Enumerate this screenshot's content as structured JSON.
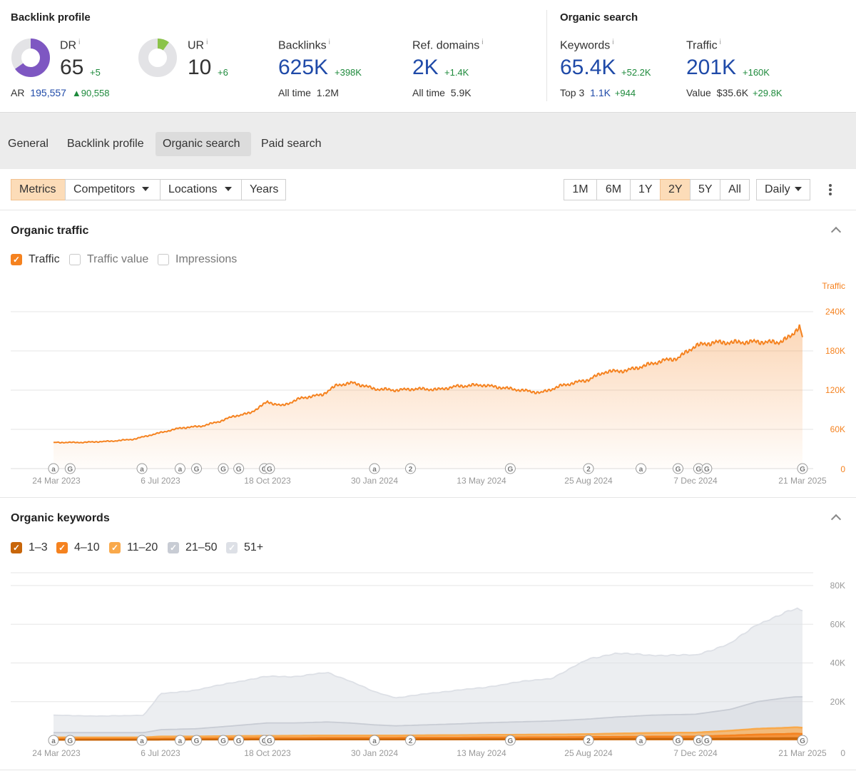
{
  "backlink_profile": {
    "title": "Backlink profile",
    "dr": {
      "label": "DR",
      "info": "i",
      "value": "65",
      "delta": "+5",
      "ring_fill": 0.65
    },
    "ar": {
      "label": "AR",
      "value": "195,557",
      "delta": "90,558"
    },
    "ur": {
      "label": "UR",
      "info": "i",
      "value": "10",
      "delta": "+6",
      "ring_fill": 0.1
    },
    "backlinks": {
      "label": "Backlinks",
      "info": "i",
      "value": "625K",
      "delta": "+398K",
      "sub_label": "All time",
      "sub_value": "1.2M"
    },
    "ref_domains": {
      "label": "Ref. domains",
      "info": "i",
      "value": "2K",
      "delta": "+1.4K",
      "sub_label": "All time",
      "sub_value": "5.9K"
    }
  },
  "organic_search": {
    "title": "Organic search",
    "keywords": {
      "label": "Keywords",
      "info": "i",
      "value": "65.4K",
      "delta": "+52.2K",
      "sub_label": "Top 3",
      "sub_value": "1.1K",
      "sub_delta": "+944"
    },
    "traffic": {
      "label": "Traffic",
      "info": "i",
      "value": "201K",
      "delta": "+160K",
      "sub_label": "Value",
      "sub_value": "$35.6K",
      "sub_delta": "+29.8K"
    }
  },
  "tabs": [
    "General",
    "Backlink profile",
    "Organic search",
    "Paid search"
  ],
  "active_tab": "Organic search",
  "toolbar": {
    "metrics": "Metrics",
    "competitors": "Competitors",
    "locations": "Locations",
    "years": "Years",
    "ranges": [
      "1M",
      "6M",
      "1Y",
      "2Y",
      "5Y",
      "All"
    ],
    "active_range": "2Y",
    "interval": "Daily"
  },
  "organic_traffic": {
    "title": "Organic traffic",
    "checkboxes": [
      {
        "label": "Traffic",
        "checked": true
      },
      {
        "label": "Traffic value",
        "checked": false
      },
      {
        "label": "Impressions",
        "checked": false
      }
    ]
  },
  "organic_keywords": {
    "title": "Organic keywords",
    "checkboxes": [
      {
        "label": "1–3",
        "checked": true,
        "color": "#c8660a"
      },
      {
        "label": "4–10",
        "checked": true,
        "color": "#f5821f"
      },
      {
        "label": "11–20",
        "checked": true,
        "color": "#f9a94b"
      },
      {
        "label": "21–50",
        "checked": true,
        "color": "#c8ccd4"
      },
      {
        "label": "51+",
        "checked": true,
        "color": "#dde0e6"
      }
    ]
  },
  "colors": {
    "accent": "#f5821f",
    "link_blue": "#1f4aa8",
    "positive": "#1e8a3c",
    "dr_purple": "#7e57c2",
    "ur_green": "#8bc34a"
  },
  "chart_data": [
    {
      "type": "area",
      "title": "Organic traffic",
      "series": [
        {
          "name": "Traffic",
          "color": "#f5821f",
          "x": [
            "2023-03-24",
            "2023-04-20",
            "2023-05-20",
            "2023-06-10",
            "2023-07-06",
            "2023-07-25",
            "2023-08-15",
            "2023-09-01",
            "2023-09-15",
            "2023-10-01",
            "2023-10-18",
            "2023-11-01",
            "2023-11-20",
            "2023-12-10",
            "2023-12-25",
            "2024-01-10",
            "2024-01-30",
            "2024-02-20",
            "2024-03-10",
            "2024-04-01",
            "2024-04-20",
            "2024-05-13",
            "2024-06-01",
            "2024-06-20",
            "2024-07-10",
            "2024-07-30",
            "2024-08-25",
            "2024-09-10",
            "2024-10-01",
            "2024-10-20",
            "2024-11-05",
            "2024-11-20",
            "2024-12-07",
            "2024-12-25",
            "2025-01-15",
            "2025-02-05",
            "2025-02-25",
            "2025-03-10",
            "2025-03-18",
            "2025-03-21"
          ],
          "values": [
            40000,
            40000,
            42000,
            45000,
            55000,
            62000,
            65000,
            72000,
            80000,
            85000,
            102000,
            96000,
            108000,
            113000,
            128000,
            131000,
            122000,
            120000,
            122000,
            121000,
            126000,
            128000,
            124000,
            120000,
            116000,
            127000,
            136000,
            148000,
            150000,
            158000,
            165000,
            169000,
            188000,
            193000,
            193000,
            194000,
            193000,
            202000,
            219000,
            201000
          ]
        }
      ],
      "x_tick_labels": [
        "24 Mar 2023",
        "6 Jul 2023",
        "18 Oct 2023",
        "30 Jan 2024",
        "13 May 2024",
        "25 Aug 2024",
        "7 Dec 2024",
        "21 Mar 2025"
      ],
      "y_tick_labels": [
        "0",
        "60K",
        "120K",
        "180K",
        "240K"
      ],
      "ylabel": "Traffic",
      "ylim": [
        0,
        240000
      ],
      "grid": true,
      "annotation_markers": [
        {
          "date": "2023-03-24",
          "glyph": "a"
        },
        {
          "date": "2023-04-05",
          "glyph": "G"
        },
        {
          "date": "2023-06-18",
          "glyph": "a"
        },
        {
          "date": "2023-07-25",
          "glyph": "a"
        },
        {
          "date": "2023-08-10",
          "glyph": "G"
        },
        {
          "date": "2023-09-05",
          "glyph": "G"
        },
        {
          "date": "2023-09-20",
          "glyph": "G"
        },
        {
          "date": "2023-10-15",
          "glyph": "G"
        },
        {
          "date": "2023-10-20",
          "glyph": "G"
        },
        {
          "date": "2024-01-30",
          "glyph": "a"
        },
        {
          "date": "2024-03-05",
          "glyph": "2"
        },
        {
          "date": "2024-06-10",
          "glyph": "G"
        },
        {
          "date": "2024-08-25",
          "glyph": "2"
        },
        {
          "date": "2024-10-15",
          "glyph": "a"
        },
        {
          "date": "2024-11-20",
          "glyph": "G"
        },
        {
          "date": "2024-12-10",
          "glyph": "G"
        },
        {
          "date": "2024-12-18",
          "glyph": "G"
        },
        {
          "date": "2025-03-21",
          "glyph": "G"
        }
      ]
    },
    {
      "type": "area",
      "title": "Organic keywords",
      "x": [
        "2023-03-24",
        "2023-05-10",
        "2023-06-20",
        "2023-07-06",
        "2023-08-10",
        "2023-09-15",
        "2023-10-18",
        "2023-11-15",
        "2023-12-15",
        "2024-01-05",
        "2024-01-30",
        "2024-02-20",
        "2024-03-20",
        "2024-04-20",
        "2024-05-13",
        "2024-06-15",
        "2024-07-20",
        "2024-08-25",
        "2024-09-20",
        "2024-10-25",
        "2024-12-07",
        "2025-01-10",
        "2025-02-05",
        "2025-03-05",
        "2025-03-15",
        "2025-03-21"
      ],
      "series": [
        {
          "name": "51+",
          "color": "#dde0e6",
          "values": [
            13000,
            12500,
            13000,
            24000,
            26000,
            30000,
            33000,
            33000,
            35000,
            31000,
            25000,
            22000,
            24000,
            26000,
            27000,
            30000,
            32000,
            42000,
            45000,
            44000,
            44000,
            50000,
            60000,
            66000,
            68000,
            67000
          ]
        },
        {
          "name": "21–50",
          "color": "#c8ccd4",
          "values": [
            4000,
            4000,
            4000,
            5500,
            6000,
            7500,
            9000,
            9000,
            9500,
            9000,
            8000,
            7500,
            8000,
            8500,
            9000,
            9500,
            10000,
            11000,
            12000,
            13000,
            13500,
            16000,
            20000,
            22000,
            22500,
            22500
          ]
        },
        {
          "name": "11–20",
          "color": "#f9a94b",
          "values": [
            1500,
            1500,
            1500,
            2000,
            2000,
            2200,
            2300,
            2400,
            2500,
            2500,
            2500,
            2500,
            2600,
            2700,
            2800,
            2900,
            3000,
            3200,
            3500,
            3800,
            4000,
            5000,
            6000,
            6500,
            6800,
            6500
          ]
        },
        {
          "name": "4–10",
          "color": "#f5821f",
          "values": [
            800,
            800,
            800,
            900,
            1000,
            1100,
            1200,
            1200,
            1300,
            1300,
            1300,
            1300,
            1400,
            1400,
            1500,
            1500,
            1600,
            1700,
            1800,
            1900,
            2000,
            2500,
            3000,
            3300,
            3500,
            3300
          ]
        },
        {
          "name": "1–3",
          "color": "#c8660a",
          "values": [
            300,
            300,
            300,
            350,
            400,
            400,
            450,
            450,
            500,
            500,
            500,
            500,
            550,
            550,
            600,
            600,
            650,
            700,
            750,
            800,
            850,
            950,
            1050,
            1100,
            1100,
            1100
          ]
        }
      ],
      "x_tick_labels": [
        "24 Mar 2023",
        "6 Jul 2023",
        "18 Oct 2023",
        "30 Jan 2024",
        "13 May 2024",
        "25 Aug 2024",
        "7 Dec 2024",
        "21 Mar 2025"
      ],
      "y_tick_labels": [
        "0",
        "20K",
        "40K",
        "60K",
        "80K"
      ],
      "ylim": [
        0,
        80000
      ],
      "grid": true
    }
  ]
}
